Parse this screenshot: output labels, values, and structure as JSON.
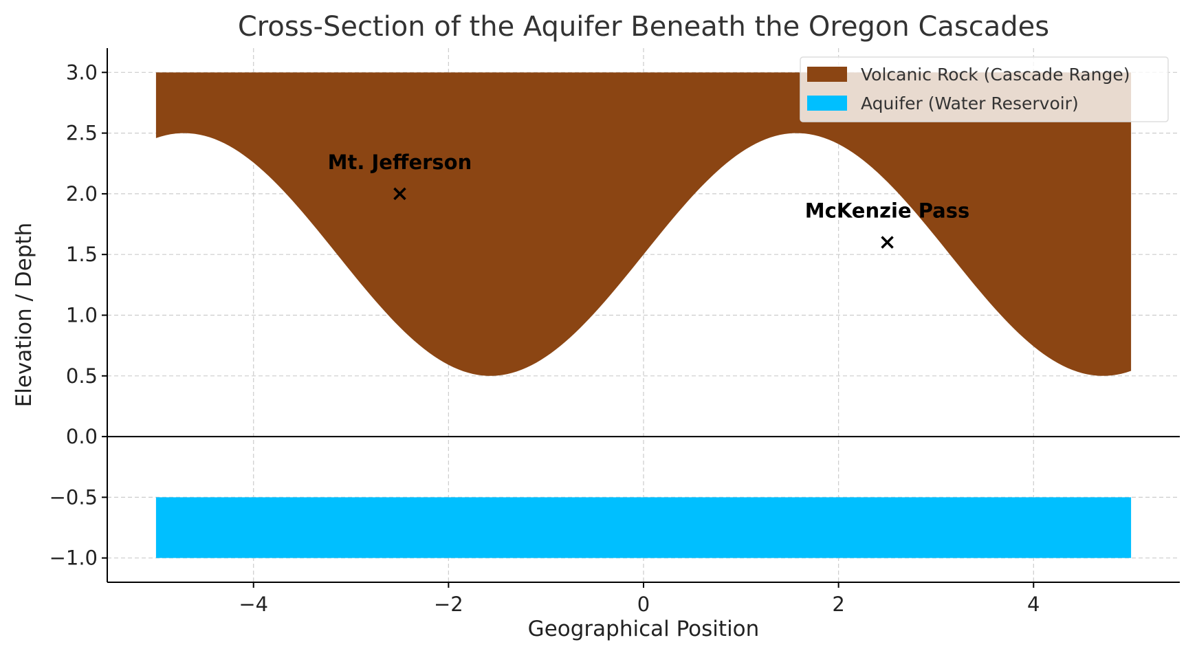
{
  "chart_data": {
    "type": "area",
    "title": "Cross-Section of the Aquifer Beneath the Oregon Cascades",
    "xlabel": "Geographical Position",
    "ylabel": "Elevation / Depth",
    "xlim": [
      -5.5,
      5.5
    ],
    "ylim": [
      -1.2,
      3.2
    ],
    "x_ticks": [
      -4,
      -2,
      0,
      2,
      4
    ],
    "x_tick_labels": [
      "−4",
      "−2",
      "0",
      "2",
      "4"
    ],
    "y_ticks": [
      3.0,
      2.5,
      2.0,
      1.5,
      1.0,
      0.5,
      0.0,
      -0.5,
      -1.0
    ],
    "y_tick_labels": [
      "3.0",
      "2.5",
      "2.0",
      "1.5",
      "1.0",
      "0.5",
      "0.0",
      "−0.5",
      "−1.0"
    ],
    "grid": true,
    "zero_line": true,
    "series": [
      {
        "name": "Volcanic Rock (Cascade Range)",
        "kind": "fill_between",
        "color": "#8B4513",
        "x_range": [
          -5,
          5
        ],
        "upper": 3.0,
        "lower_function": "1.5 + sin(x)",
        "sample_points": [
          {
            "x": -5.0,
            "y": 2.46
          },
          {
            "x": -4.71,
            "y": 2.5
          },
          {
            "x": -4.0,
            "y": 2.26
          },
          {
            "x": -3.0,
            "y": 1.36
          },
          {
            "x": -2.0,
            "y": 0.59
          },
          {
            "x": -1.57,
            "y": 0.5
          },
          {
            "x": -1.0,
            "y": 0.66
          },
          {
            "x": 0.0,
            "y": 1.5
          },
          {
            "x": 1.0,
            "y": 2.34
          },
          {
            "x": 1.57,
            "y": 2.5
          },
          {
            "x": 2.0,
            "y": 2.41
          },
          {
            "x": 3.0,
            "y": 1.64
          },
          {
            "x": 4.0,
            "y": 0.74
          },
          {
            "x": 4.71,
            "y": 0.5
          },
          {
            "x": 5.0,
            "y": 0.54
          }
        ]
      },
      {
        "name": "Aquifer (Water Reservoir)",
        "kind": "fill_between",
        "color": "#00BFFF",
        "x_range": [
          -5,
          5
        ],
        "upper": -0.5,
        "lower": -1.0
      }
    ],
    "annotations": [
      {
        "text": "Mt. Jefferson",
        "marker": "x",
        "x": -2.5,
        "y": 2.0
      },
      {
        "text": "McKenzie Pass",
        "marker": "x",
        "x": 2.5,
        "y": 1.6
      }
    ],
    "legend": {
      "placement": "top-right"
    }
  }
}
